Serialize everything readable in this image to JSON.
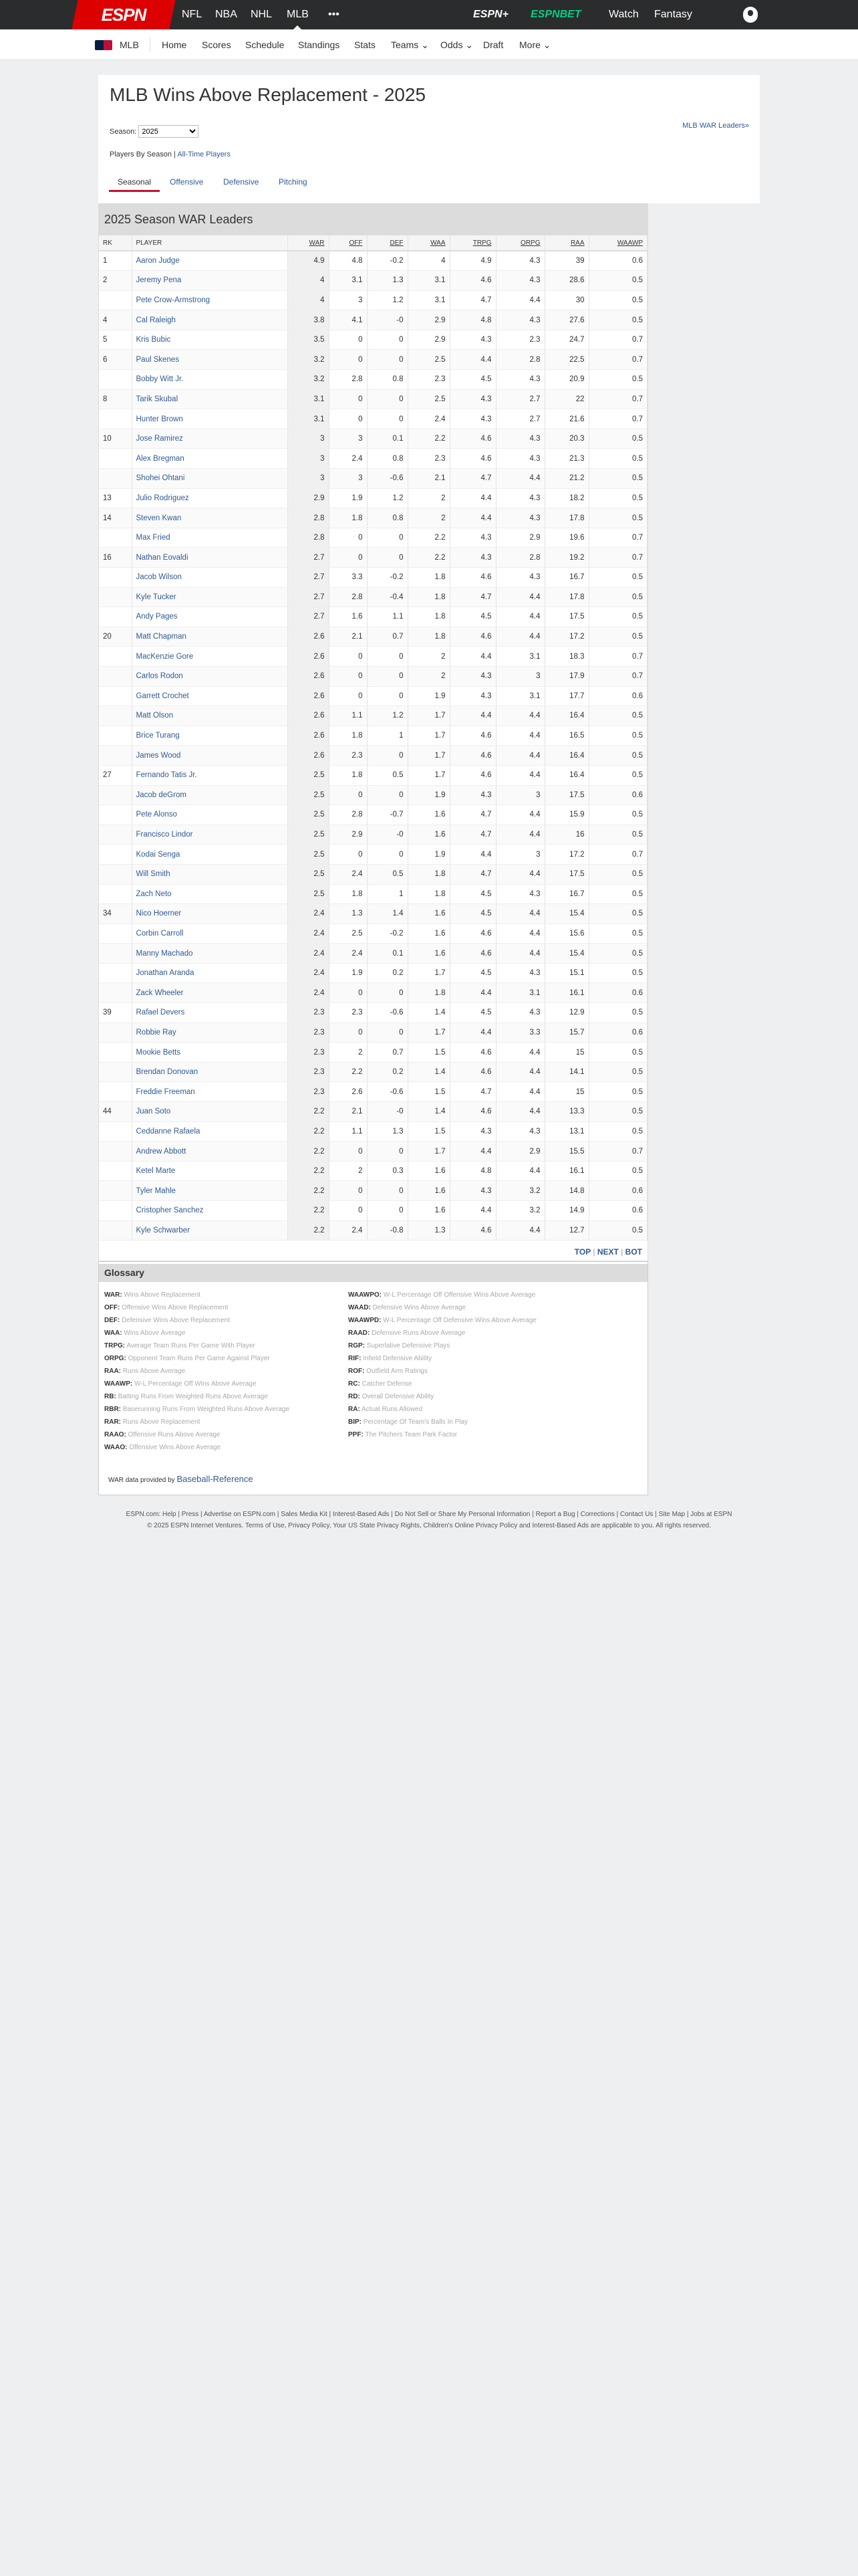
{
  "topnav": {
    "logo": "ESPN",
    "items": [
      "NFL",
      "NBA",
      "NHL",
      "MLB"
    ],
    "more": "•••",
    "espn_plus": "ESPN+",
    "espnbet": "ESPNBET",
    "watch": "Watch",
    "fantasy": "Fantasy"
  },
  "subnav": {
    "league": "MLB",
    "items": [
      "Home",
      "Scores",
      "Schedule",
      "Standings",
      "Stats",
      "Teams ⌄",
      "Odds ⌄",
      "Draft",
      "More ⌄"
    ]
  },
  "page": {
    "title": "MLB Wins Above Replacement - 2025",
    "season_label": "Season:",
    "season_value": "2025",
    "war_leaders_link": "MLB WAR Leaders»",
    "players_by_season": "Players By Season |",
    "all_time": "All-Time Players",
    "tabs": [
      "Seasonal",
      "Offensive",
      "Defensive",
      "Pitching"
    ]
  },
  "table": {
    "title": "2025 Season WAR Leaders",
    "columns": [
      "RK",
      "PLAYER",
      "WAR",
      "OFF",
      "DEF",
      "WAA",
      "TRPG",
      "ORPG",
      "RAA",
      "WAAWP"
    ],
    "rows": [
      [
        "1",
        "Aaron Judge",
        "4.9",
        "4.8",
        "-0.2",
        "4",
        "4.9",
        "4.3",
        "39",
        "0.6"
      ],
      [
        "2",
        "Jeremy Pena",
        "4",
        "3.1",
        "1.3",
        "3.1",
        "4.6",
        "4.3",
        "28.6",
        "0.5"
      ],
      [
        "",
        "Pete Crow-Armstrong",
        "4",
        "3",
        "1.2",
        "3.1",
        "4.7",
        "4.4",
        "30",
        "0.5"
      ],
      [
        "4",
        "Cal Raleigh",
        "3.8",
        "4.1",
        "-0",
        "2.9",
        "4.8",
        "4.3",
        "27.6",
        "0.5"
      ],
      [
        "5",
        "Kris Bubic",
        "3.5",
        "0",
        "0",
        "2.9",
        "4.3",
        "2.3",
        "24.7",
        "0.7"
      ],
      [
        "6",
        "Paul Skenes",
        "3.2",
        "0",
        "0",
        "2.5",
        "4.4",
        "2.8",
        "22.5",
        "0.7"
      ],
      [
        "",
        "Bobby Witt Jr.",
        "3.2",
        "2.8",
        "0.8",
        "2.3",
        "4.5",
        "4.3",
        "20.9",
        "0.5"
      ],
      [
        "8",
        "Tarik Skubal",
        "3.1",
        "0",
        "0",
        "2.5",
        "4.3",
        "2.7",
        "22",
        "0.7"
      ],
      [
        "",
        "Hunter Brown",
        "3.1",
        "0",
        "0",
        "2.4",
        "4.3",
        "2.7",
        "21.6",
        "0.7"
      ],
      [
        "10",
        "Jose Ramirez",
        "3",
        "3",
        "0.1",
        "2.2",
        "4.6",
        "4.3",
        "20.3",
        "0.5"
      ],
      [
        "",
        "Alex Bregman",
        "3",
        "2.4",
        "0.8",
        "2.3",
        "4.6",
        "4.3",
        "21.3",
        "0.5"
      ],
      [
        "",
        "Shohei Ohtani",
        "3",
        "3",
        "-0.6",
        "2.1",
        "4.7",
        "4.4",
        "21.2",
        "0.5"
      ],
      [
        "13",
        "Julio Rodriguez",
        "2.9",
        "1.9",
        "1.2",
        "2",
        "4.4",
        "4.3",
        "18.2",
        "0.5"
      ],
      [
        "14",
        "Steven Kwan",
        "2.8",
        "1.8",
        "0.8",
        "2",
        "4.4",
        "4.3",
        "17.8",
        "0.5"
      ],
      [
        "",
        "Max Fried",
        "2.8",
        "0",
        "0",
        "2.2",
        "4.3",
        "2.9",
        "19.6",
        "0.7"
      ],
      [
        "16",
        "Nathan Eovaldi",
        "2.7",
        "0",
        "0",
        "2.2",
        "4.3",
        "2.8",
        "19.2",
        "0.7"
      ],
      [
        "",
        "Jacob Wilson",
        "2.7",
        "3.3",
        "-0.2",
        "1.8",
        "4.6",
        "4.3",
        "16.7",
        "0.5"
      ],
      [
        "",
        "Kyle Tucker",
        "2.7",
        "2.8",
        "-0.4",
        "1.8",
        "4.7",
        "4.4",
        "17.8",
        "0.5"
      ],
      [
        "",
        "Andy Pages",
        "2.7",
        "1.6",
        "1.1",
        "1.8",
        "4.5",
        "4.4",
        "17.5",
        "0.5"
      ],
      [
        "20",
        "Matt Chapman",
        "2.6",
        "2.1",
        "0.7",
        "1.8",
        "4.6",
        "4.4",
        "17.2",
        "0.5"
      ],
      [
        "",
        "MacKenzie Gore",
        "2.6",
        "0",
        "0",
        "2",
        "4.4",
        "3.1",
        "18.3",
        "0.7"
      ],
      [
        "",
        "Carlos Rodon",
        "2.6",
        "0",
        "0",
        "2",
        "4.3",
        "3",
        "17.9",
        "0.7"
      ],
      [
        "",
        "Garrett Crochet",
        "2.6",
        "0",
        "0",
        "1.9",
        "4.3",
        "3.1",
        "17.7",
        "0.6"
      ],
      [
        "",
        "Matt Olson",
        "2.6",
        "1.1",
        "1.2",
        "1.7",
        "4.4",
        "4.4",
        "16.4",
        "0.5"
      ],
      [
        "",
        "Brice Turang",
        "2.6",
        "1.8",
        "1",
        "1.7",
        "4.6",
        "4.4",
        "16.5",
        "0.5"
      ],
      [
        "",
        "James Wood",
        "2.6",
        "2.3",
        "0",
        "1.7",
        "4.6",
        "4.4",
        "16.4",
        "0.5"
      ],
      [
        "27",
        "Fernando Tatis Jr.",
        "2.5",
        "1.8",
        "0.5",
        "1.7",
        "4.6",
        "4.4",
        "16.4",
        "0.5"
      ],
      [
        "",
        "Jacob deGrom",
        "2.5",
        "0",
        "0",
        "1.9",
        "4.3",
        "3",
        "17.5",
        "0.6"
      ],
      [
        "",
        "Pete Alonso",
        "2.5",
        "2.8",
        "-0.7",
        "1.6",
        "4.7",
        "4.4",
        "15.9",
        "0.5"
      ],
      [
        "",
        "Francisco Lindor",
        "2.5",
        "2.9",
        "-0",
        "1.6",
        "4.7",
        "4.4",
        "16",
        "0.5"
      ],
      [
        "",
        "Kodai Senga",
        "2.5",
        "0",
        "0",
        "1.9",
        "4.4",
        "3",
        "17.2",
        "0.7"
      ],
      [
        "",
        "Will Smith",
        "2.5",
        "2.4",
        "0.5",
        "1.8",
        "4.7",
        "4.4",
        "17.5",
        "0.5"
      ],
      [
        "",
        "Zach Neto",
        "2.5",
        "1.8",
        "1",
        "1.8",
        "4.5",
        "4.3",
        "16.7",
        "0.5"
      ],
      [
        "34",
        "Nico Hoerner",
        "2.4",
        "1.3",
        "1.4",
        "1.6",
        "4.5",
        "4.4",
        "15.4",
        "0.5"
      ],
      [
        "",
        "Corbin Carroll",
        "2.4",
        "2.5",
        "-0.2",
        "1.6",
        "4.6",
        "4.4",
        "15.6",
        "0.5"
      ],
      [
        "",
        "Manny Machado",
        "2.4",
        "2.4",
        "0.1",
        "1.6",
        "4.6",
        "4.4",
        "15.4",
        "0.5"
      ],
      [
        "",
        "Jonathan Aranda",
        "2.4",
        "1.9",
        "0.2",
        "1.7",
        "4.5",
        "4.3",
        "15.1",
        "0.5"
      ],
      [
        "",
        "Zack Wheeler",
        "2.4",
        "0",
        "0",
        "1.8",
        "4.4",
        "3.1",
        "16.1",
        "0.6"
      ],
      [
        "39",
        "Rafael Devers",
        "2.3",
        "2.3",
        "-0.6",
        "1.4",
        "4.5",
        "4.3",
        "12.9",
        "0.5"
      ],
      [
        "",
        "Robbie Ray",
        "2.3",
        "0",
        "0",
        "1.7",
        "4.4",
        "3.3",
        "15.7",
        "0.6"
      ],
      [
        "",
        "Mookie Betts",
        "2.3",
        "2",
        "0.7",
        "1.5",
        "4.6",
        "4.4",
        "15",
        "0.5"
      ],
      [
        "",
        "Brendan Donovan",
        "2.3",
        "2.2",
        "0.2",
        "1.4",
        "4.6",
        "4.4",
        "14.1",
        "0.5"
      ],
      [
        "",
        "Freddie Freeman",
        "2.3",
        "2.6",
        "-0.6",
        "1.5",
        "4.7",
        "4.4",
        "15",
        "0.5"
      ],
      [
        "44",
        "Juan Soto",
        "2.2",
        "2.1",
        "-0",
        "1.4",
        "4.6",
        "4.4",
        "13.3",
        "0.5"
      ],
      [
        "",
        "Ceddanne Rafaela",
        "2.2",
        "1.1",
        "1.3",
        "1.5",
        "4.3",
        "4.3",
        "13.1",
        "0.5"
      ],
      [
        "",
        "Andrew Abbott",
        "2.2",
        "0",
        "0",
        "1.7",
        "4.4",
        "2.9",
        "15.5",
        "0.7"
      ],
      [
        "",
        "Ketel Marte",
        "2.2",
        "2",
        "0.3",
        "1.6",
        "4.8",
        "4.4",
        "16.1",
        "0.5"
      ],
      [
        "",
        "Tyler Mahle",
        "2.2",
        "0",
        "0",
        "1.6",
        "4.3",
        "3.2",
        "14.8",
        "0.6"
      ],
      [
        "",
        "Cristopher Sanchez",
        "2.2",
        "0",
        "0",
        "1.6",
        "4.4",
        "3.2",
        "14.9",
        "0.6"
      ],
      [
        "",
        "Kyle Schwarber",
        "2.2",
        "2.4",
        "-0.8",
        "1.3",
        "4.6",
        "4.4",
        "12.7",
        "0.5"
      ]
    ],
    "pager": {
      "top": "TOP",
      "next": "NEXT",
      "bot": "BOT",
      "sep": "|"
    }
  },
  "glossary": {
    "title": "Glossary",
    "left": [
      [
        "WAR:",
        "Wins Above Replacement"
      ],
      [
        "OFF:",
        "Offensive Wins Above Replacement"
      ],
      [
        "DEF:",
        "Defensive Wins Above Replacement"
      ],
      [
        "WAA:",
        "Wins Above Average"
      ],
      [
        "TRPG:",
        "Average Team Runs Per Game With Player"
      ],
      [
        "ORPG:",
        "Opponent Team Runs Per Game Against Player"
      ],
      [
        "RAA:",
        "Runs Above Average"
      ],
      [
        "WAAWP:",
        "W-L Percentage Off Wins Above Average"
      ],
      [
        "RB:",
        "Batting Runs From Weighted Runs Above Average"
      ],
      [
        "RBR:",
        "Baserunning Runs From Weighted Runs Above Average"
      ],
      [
        "RAR:",
        "Runs Above Replacement"
      ],
      [
        "RAAO:",
        "Offensive Runs Above Average"
      ],
      [
        "WAAO:",
        "Offensive Wins Above Average"
      ]
    ],
    "right": [
      [
        "WAAWPO:",
        "W-L Percentage Off Offensive Wins Above Average"
      ],
      [
        "WAAD:",
        "Defensive Wins Above Average"
      ],
      [
        "WAAWPD:",
        "W-L Percentage Off Defensive Wins Above Average"
      ],
      [
        "RAAD:",
        "Defensive Runs Above Average"
      ],
      [
        "RGP:",
        "Superlative Defensive Plays"
      ],
      [
        "RIF:",
        "Infield Defensive Ability"
      ],
      [
        "ROF:",
        "Outfield Arm Ratings"
      ],
      [
        "RC:",
        "Catcher Defense"
      ],
      [
        "RD:",
        "Overall Defensive Ability"
      ],
      [
        "RA:",
        "Actual Runs Allowed"
      ],
      [
        "BIP:",
        "Percentage Of Team's Balls In Play"
      ],
      [
        "PPF:",
        "The Pitchers Team Park Factor"
      ]
    ],
    "credit": "WAR data provided by",
    "credit_link": "Baseball-Reference"
  },
  "footer": {
    "line1": "ESPN.com: Help | Press | Advertise on ESPN.com | Sales Media Kit | Interest-Based Ads | Do Not Sell or Share My Personal Information | Report a Bug | Corrections | Contact Us | Site Map | Jobs at ESPN",
    "line2": "© 2025 ESPN Internet Ventures. Terms of Use, Privacy Policy, Your US State Privacy Rights, Children's Online Privacy Policy and Interest-Based Ads are applicable to you. All rights reserved."
  },
  "colors": {
    "accent": "#c8102e",
    "link": "#2f5a94",
    "nav_bg": "#2b2c2d",
    "espnbet": "#00d084"
  }
}
